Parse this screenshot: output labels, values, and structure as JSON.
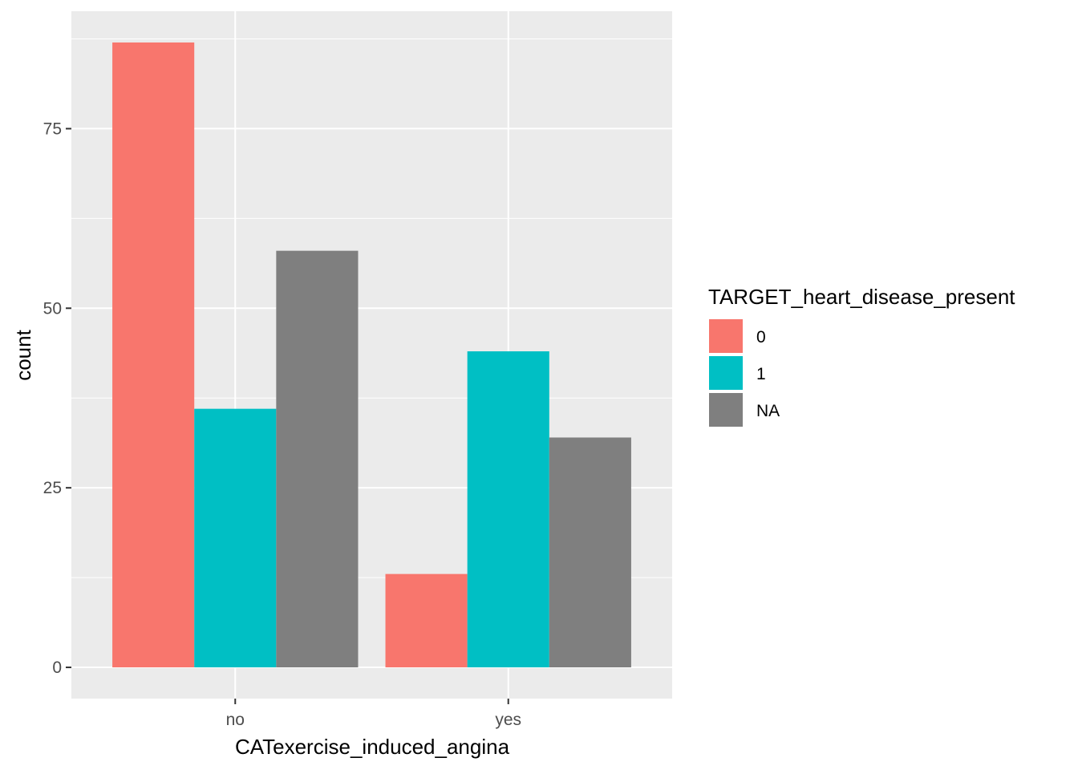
{
  "chart_data": {
    "type": "bar",
    "categories": [
      "no",
      "yes"
    ],
    "series": [
      {
        "name": "0",
        "values": [
          87,
          13
        ]
      },
      {
        "name": "1",
        "values": [
          36,
          44
        ]
      },
      {
        "name": "NA",
        "values": [
          58,
          32
        ]
      }
    ],
    "xlabel": "CATexercise_induced_angina",
    "ylabel": "count",
    "ylim": [
      -4.35,
      91.35
    ],
    "y_ticks": [
      0,
      25,
      50,
      75
    ],
    "grid": true,
    "legend_title": "TARGET_heart_disease_present",
    "legend_position": "right",
    "colors": {
      "panel_background": "#EBEBEB",
      "grid": "#FFFFFF",
      "0": "#F8766D",
      "1": "#00BFC4",
      "NA": "#7F7F7F",
      "axis_text": "#4D4D4D",
      "title_text": "#000000"
    }
  }
}
